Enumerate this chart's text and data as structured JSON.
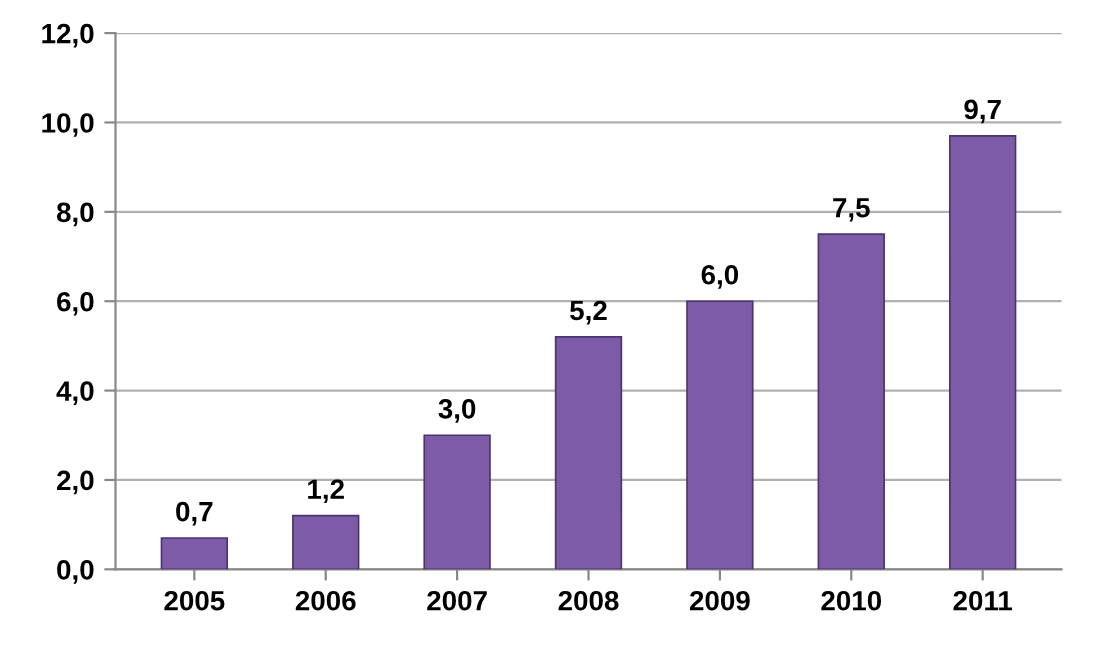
{
  "chart_data": {
    "type": "bar",
    "categories": [
      "2005",
      "2006",
      "2007",
      "2008",
      "2009",
      "2010",
      "2011"
    ],
    "values": [
      0.7,
      1.2,
      3.0,
      5.2,
      6.0,
      7.5,
      9.7
    ],
    "value_labels": [
      "0,7",
      "1,2",
      "3,0",
      "5,2",
      "6,0",
      "7,5",
      "9,7"
    ],
    "color": "#7d5ba6",
    "ylim": [
      0,
      12
    ],
    "yticks": [
      {
        "value": 0,
        "label": "0,0"
      },
      {
        "value": 2,
        "label": "2,0"
      },
      {
        "value": 4,
        "label": "4,0"
      },
      {
        "value": 6,
        "label": "6,0"
      },
      {
        "value": 8,
        "label": "8,0"
      },
      {
        "value": 10,
        "label": "10,0"
      },
      {
        "value": 12,
        "label": "12,0"
      }
    ],
    "grid": "y"
  }
}
